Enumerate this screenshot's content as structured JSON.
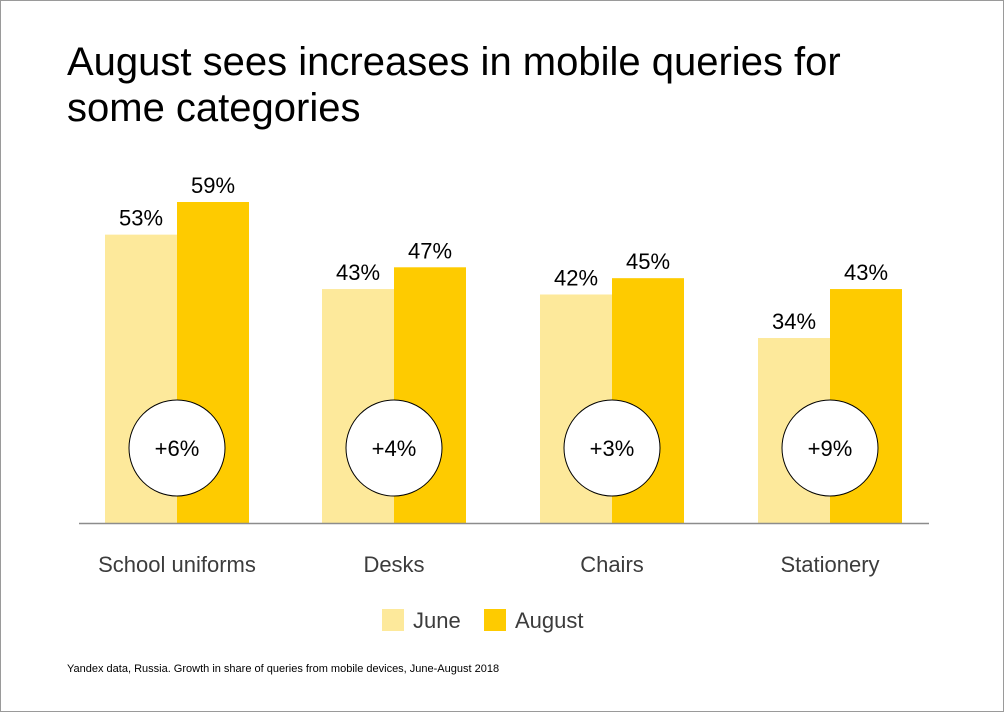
{
  "title": "August sees increases in mobile queries for some categories",
  "footnote": "Yandex data, Russia. Growth in share of queries from mobile devices, June-August 2018",
  "chart_data": {
    "type": "bar",
    "categories": [
      "School uniforms",
      "Desks",
      "Chairs",
      "Stationery"
    ],
    "series": [
      {
        "name": "June",
        "values": [
          53,
          43,
          42,
          34
        ],
        "labels": [
          "53%",
          "43%",
          "42%",
          "34%"
        ],
        "color": "#fde99b"
      },
      {
        "name": "August",
        "values": [
          59,
          47,
          45,
          43
        ],
        "labels": [
          "59%",
          "47%",
          "45%",
          "43%"
        ],
        "color": "#fecb00"
      }
    ],
    "annotations": [
      "+6%",
      "+4%",
      "+3%",
      "+9%"
    ],
    "ylim": [
      0,
      59
    ],
    "grid": false,
    "legend": "bottom-center"
  }
}
